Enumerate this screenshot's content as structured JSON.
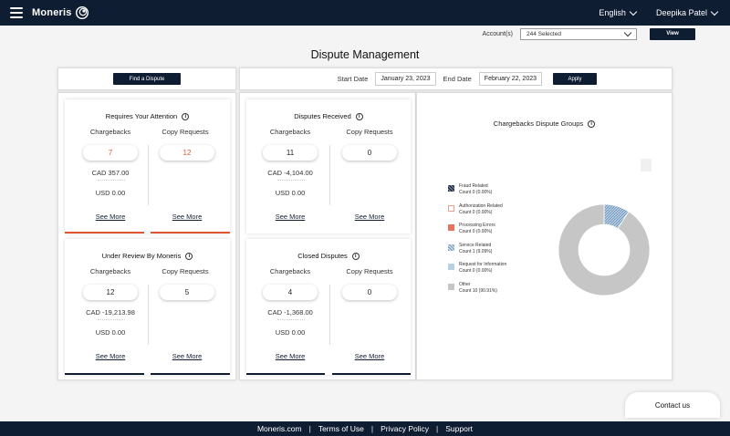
{
  "header": {
    "brand": "Moneris",
    "language": "English",
    "user": "Deepika Patel"
  },
  "account_bar": {
    "label": "Account(s)",
    "selected": "244 Selected",
    "view_label": "View"
  },
  "page_title": "Dispute Management",
  "find_dispute_label": "Find a Dispute",
  "date_filter": {
    "start_label": "Start Date",
    "start_value": "January 23, 2023",
    "end_label": "End Date",
    "end_value": "February 22, 2023",
    "apply_label": "Apply"
  },
  "cards": {
    "attention": {
      "title": "Requires Your Attention",
      "col1": "Chargebacks",
      "col2": "Copy Requests",
      "chargebacks": "7",
      "copy_requests": "12",
      "cad": "CAD 357.00",
      "usd": "USD 0.00",
      "see_more_1": "See More",
      "see_more_2": "See More"
    },
    "received": {
      "title": "Disputes Received",
      "col1": "Chargebacks",
      "col2": "Copy Requests",
      "chargebacks": "11",
      "copy_requests": "0",
      "cad": "CAD -4,104.00",
      "usd": "USD 0.00",
      "see_more_1": "See More",
      "see_more_2": "See More"
    },
    "review": {
      "title": "Under Review By Moneris",
      "col1": "Chargebacks",
      "col2": "Copy Requests",
      "chargebacks": "12",
      "copy_requests": "5",
      "cad": "CAD -19,213.98",
      "usd": "USD 0.00",
      "see_more_1": "See More",
      "see_more_2": "See More"
    },
    "closed": {
      "title": "Closed Disputes",
      "col1": "Chargebacks",
      "col2": "Copy Requests",
      "chargebacks": "4",
      "copy_requests": "0",
      "cad": "CAD -1,368.00",
      "usd": "USD 0.00",
      "see_more_1": "See More",
      "see_more_2": "See More"
    }
  },
  "chart_data": {
    "type": "pie",
    "title": "Chargebacks Dispute Groups",
    "donut": true,
    "legend_position": "left",
    "slices": [
      {
        "name": "Fraud Related",
        "label": "Count 0 (0.00%)",
        "value": 0,
        "color": "#1d2a44"
      },
      {
        "name": "Authorization Related",
        "label": "Count 0 (0.00%)",
        "value": 0,
        "color": "#e8a08c"
      },
      {
        "name": "Processing Errors",
        "label": "Count 0 (0.00%)",
        "value": 0,
        "color": "#e9735c"
      },
      {
        "name": "Service Related",
        "label": "Count 1 (9.09%)",
        "value": 1,
        "color": "#7ea3c4"
      },
      {
        "name": "Request for Information",
        "label": "Count 0 (0.00%)",
        "value": 0,
        "color": "#b8cfe4"
      },
      {
        "name": "Other",
        "label": "Count 10 (90.91%)",
        "value": 10,
        "color": "#c6c6c6"
      }
    ]
  },
  "colors": {
    "navy": "#0f1d33",
    "accent_red": "#e0552f"
  },
  "contact_label": "Contact us",
  "footer": {
    "link1": "Moneris.com",
    "link2": "Terms of Use",
    "link3": "Privacy Policy",
    "link4": "Support"
  }
}
